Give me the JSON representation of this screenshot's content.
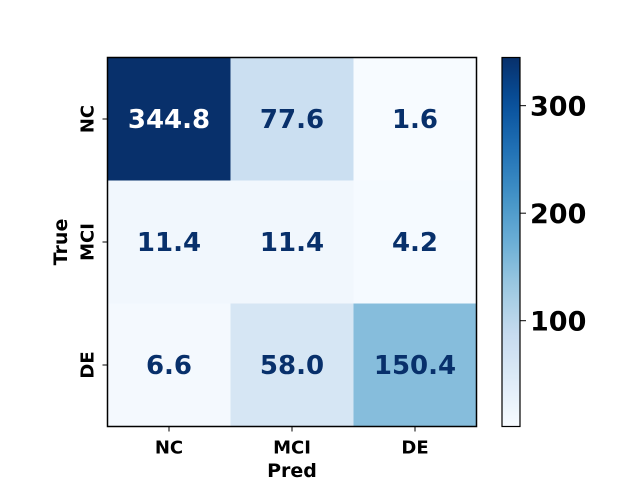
{
  "chart_data": {
    "type": "heatmap",
    "title": "",
    "xlabel": "Pred",
    "ylabel": "True",
    "x_categories": [
      "NC",
      "MCI",
      "DE"
    ],
    "y_categories": [
      "NC",
      "MCI",
      "DE"
    ],
    "values": [
      [
        344.8,
        77.6,
        1.6
      ],
      [
        11.4,
        11.4,
        4.2
      ],
      [
        6.6,
        58.0,
        150.4
      ]
    ],
    "value_labels": [
      [
        "344.8",
        "77.6",
        "1.6"
      ],
      [
        "11.4",
        "11.4",
        "4.2"
      ],
      [
        "6.6",
        "58.0",
        "150.4"
      ]
    ],
    "colorscale": "Blues",
    "color_range": [
      1.6,
      344.8
    ],
    "colorbar_ticks": [
      100,
      200,
      300
    ],
    "colorbar_tick_labels": [
      "100",
      "200",
      "300"
    ],
    "text_color_dark": "#08306b",
    "text_color_light": "#ffffff"
  }
}
